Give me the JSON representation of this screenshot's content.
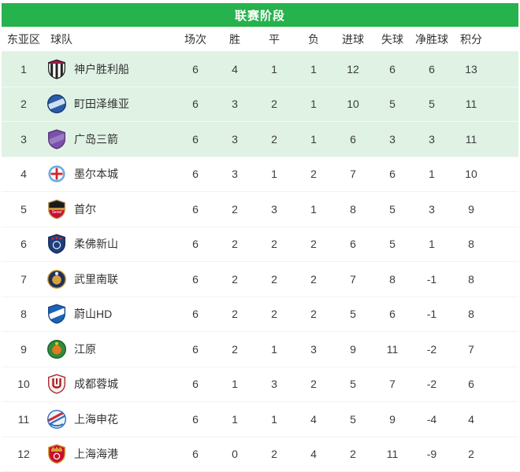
{
  "banner": {
    "title": "联赛阶段"
  },
  "colors": {
    "accent_green": "#26b24c",
    "highlight_row_bg": "#dff2e4",
    "row_bg": "#ffffff",
    "text": "#333333",
    "banner_text": "#ffffff"
  },
  "table": {
    "columns": [
      "东亚区",
      "球队",
      "场次",
      "胜",
      "平",
      "负",
      "进球",
      "失球",
      "净胜球",
      "积分"
    ],
    "rows": [
      {
        "rank": "1",
        "team": "神户胜利船",
        "played": "6",
        "win": "4",
        "draw": "1",
        "loss": "1",
        "gf": "12",
        "ga": "6",
        "gd": "6",
        "pts": "13",
        "highlight": true,
        "logo": {
          "icon": "vissel-kobe-crest",
          "shape": "shield",
          "base": "#ffffff",
          "border": "#222222",
          "motif": "stripes",
          "motifColor": "#222222",
          "accent": "#a3194b"
        }
      },
      {
        "rank": "2",
        "team": "町田泽维亚",
        "played": "6",
        "win": "3",
        "draw": "2",
        "loss": "1",
        "gf": "10",
        "ga": "5",
        "gd": "5",
        "pts": "11",
        "highlight": true,
        "logo": {
          "icon": "machida-zelvia-crest",
          "shape": "circle",
          "base": "#2a5ca8",
          "border": "#16386e",
          "motif": "band",
          "motifColor": "#cfe0f2",
          "accent": "#16386e"
        }
      },
      {
        "rank": "3",
        "team": "广岛三箭",
        "played": "6",
        "win": "3",
        "draw": "2",
        "loss": "1",
        "gf": "6",
        "ga": "3",
        "gd": "3",
        "pts": "11",
        "highlight": true,
        "logo": {
          "icon": "sanfrecce-hiroshima-crest",
          "shape": "shield",
          "base": "#7b52ab",
          "border": "#533077",
          "motif": "band",
          "motifColor": "#9a7cc4",
          "accent": "#d8cfe8"
        }
      },
      {
        "rank": "4",
        "team": "墨尔本城",
        "played": "6",
        "win": "3",
        "draw": "1",
        "loss": "2",
        "gf": "7",
        "ga": "6",
        "gd": "1",
        "pts": "10",
        "highlight": false,
        "logo": {
          "icon": "melbourne-city-crest",
          "shape": "circle",
          "base": "#6cace4",
          "border": "#ffffff",
          "motif": "cross",
          "motifColor": "#ffffff",
          "accent": "#d22730"
        }
      },
      {
        "rank": "5",
        "team": "首尔",
        "played": "6",
        "win": "2",
        "draw": "3",
        "loss": "1",
        "gf": "8",
        "ga": "5",
        "gd": "3",
        "pts": "9",
        "highlight": false,
        "logo": {
          "icon": "fc-seoul-crest",
          "shape": "shield",
          "base": "#1a1a1a",
          "border": "#b89b5e",
          "motif": "half",
          "motifColor": "#c8102e",
          "accent": "#d4a437",
          "text": "Seoul",
          "textColor": "#ffffff"
        }
      },
      {
        "rank": "6",
        "team": "柔佛新山",
        "played": "6",
        "win": "2",
        "draw": "2",
        "loss": "2",
        "gf": "6",
        "ga": "5",
        "gd": "1",
        "pts": "8",
        "highlight": false,
        "logo": {
          "icon": "johor-crest",
          "shape": "shield",
          "base": "#1c3f7e",
          "border": "#122a55",
          "motif": "dots",
          "motifColor": "#d22730",
          "accent": "#ffffff"
        }
      },
      {
        "rank": "7",
        "team": "武里南联",
        "played": "6",
        "win": "2",
        "draw": "2",
        "loss": "2",
        "gf": "7",
        "ga": "8",
        "gd": "-1",
        "pts": "8",
        "highlight": false,
        "logo": {
          "icon": "buriram-united-crest",
          "shape": "circle",
          "base": "#232f5c",
          "border": "#d4a437",
          "motif": "core",
          "motifColor": "#d4a437",
          "accent": "#ffffff"
        }
      },
      {
        "rank": "8",
        "team": "蔚山HD",
        "played": "6",
        "win": "2",
        "draw": "2",
        "loss": "2",
        "gf": "5",
        "ga": "6",
        "gd": "-1",
        "pts": "8",
        "highlight": false,
        "logo": {
          "icon": "ulsan-hd-crest",
          "shape": "shield",
          "base": "#1c63b8",
          "border": "#0e3f80",
          "motif": "band",
          "motifColor": "#ffffff",
          "accent": "#0e3f80"
        }
      },
      {
        "rank": "9",
        "team": "江原",
        "played": "6",
        "win": "2",
        "draw": "1",
        "loss": "3",
        "gf": "9",
        "ga": "11",
        "gd": "-2",
        "pts": "7",
        "highlight": false,
        "logo": {
          "icon": "gangwon-crest",
          "shape": "circle",
          "base": "#2f8c3c",
          "border": "#1d6128",
          "motif": "core",
          "motifColor": "#e87722",
          "accent": "#f2c500"
        }
      },
      {
        "rank": "10",
        "team": "成都蓉城",
        "played": "6",
        "win": "1",
        "draw": "3",
        "loss": "2",
        "gf": "5",
        "ga": "7",
        "gd": "-2",
        "pts": "6",
        "highlight": false,
        "logo": {
          "icon": "chengdu-rongcheng-crest",
          "shape": "shield",
          "base": "#f7f2ea",
          "border": "#a81e2d",
          "motif": "ustripe",
          "motifColor": "#a81e2d",
          "accent": "#a81e2d"
        }
      },
      {
        "rank": "11",
        "team": "上海申花",
        "played": "6",
        "win": "1",
        "draw": "1",
        "loss": "4",
        "gf": "5",
        "ga": "9",
        "gd": "-4",
        "pts": "4",
        "highlight": false,
        "logo": {
          "icon": "shanghai-shenhua-crest",
          "shape": "circle",
          "base": "#eef3fa",
          "border": "#2c6fbd",
          "motif": "petal",
          "motifColor": "#2c6fbd",
          "accent": "#d22730"
        }
      },
      {
        "rank": "12",
        "team": "上海海港",
        "played": "6",
        "win": "0",
        "draw": "2",
        "loss": "4",
        "gf": "2",
        "ga": "11",
        "gd": "-9",
        "pts": "2",
        "highlight": false,
        "logo": {
          "icon": "shanghai-port-crest",
          "shape": "shield",
          "base": "#c8102e",
          "border": "#d4a437",
          "motif": "crown",
          "motifColor": "#d4a437",
          "accent": "#ffffff"
        }
      }
    ]
  }
}
